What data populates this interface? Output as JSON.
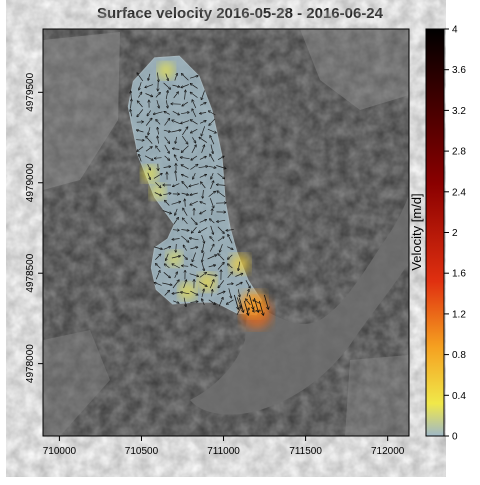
{
  "chart_data": {
    "type": "heatmap",
    "title": "Surface velocity 2016-05-28 - 2016-06-24",
    "xlabel": "",
    "ylabel": "",
    "xlim": [
      709900,
      712130
    ],
    "ylim": [
      4977600,
      4979850
    ],
    "x_ticks": [
      710000,
      710500,
      711000,
      711500,
      712000
    ],
    "y_ticks": [
      4978000,
      4978500,
      4979000,
      4979500
    ],
    "grid": false,
    "colorbar": {
      "label": "Velocity [m/d]",
      "range": [
        0,
        4
      ],
      "ticks": [
        0,
        0.4,
        0.8,
        1.2,
        1.6,
        2,
        2.4,
        2.8,
        3.2,
        3.6,
        4
      ],
      "tick_labels": [
        "0",
        "0.4",
        "0.8",
        "1.2",
        "1.6",
        "2",
        "2.4",
        "2.8",
        "3.2",
        "3.6",
        "4"
      ],
      "colors": [
        "#9fb8c8",
        "#f0e84a",
        "#f5a020",
        "#e03010",
        "#8a0000",
        "#000000"
      ]
    },
    "field_outline": [
      [
        710450,
        4979560
      ],
      [
        710580,
        4979690
      ],
      [
        710730,
        4979700
      ],
      [
        710850,
        4979590
      ],
      [
        710930,
        4979400
      ],
      [
        710990,
        4979150
      ],
      [
        711010,
        4978900
      ],
      [
        711040,
        4978750
      ],
      [
        711080,
        4978620
      ],
      [
        711150,
        4978460
      ],
      [
        711230,
        4978350
      ],
      [
        711200,
        4978270
      ],
      [
        711080,
        4978280
      ],
      [
        710950,
        4978340
      ],
      [
        710830,
        4978340
      ],
      [
        710690,
        4978330
      ],
      [
        710590,
        4978410
      ],
      [
        710560,
        4978530
      ],
      [
        710580,
        4978640
      ],
      [
        710660,
        4978690
      ],
      [
        710700,
        4978770
      ],
      [
        710580,
        4978920
      ],
      [
        710480,
        4979150
      ],
      [
        710420,
        4979420
      ]
    ],
    "velocity_hotspots": [
      {
        "x": 711200,
        "y": 4978280,
        "v": 1.2
      },
      {
        "x": 711180,
        "y": 4978330,
        "v": 0.9
      },
      {
        "x": 711100,
        "y": 4978550,
        "v": 0.5
      },
      {
        "x": 710900,
        "y": 4978450,
        "v": 0.4
      },
      {
        "x": 710780,
        "y": 4978400,
        "v": 0.35
      },
      {
        "x": 710550,
        "y": 4979050,
        "v": 0.3
      },
      {
        "x": 710650,
        "y": 4979620,
        "v": 0.3
      },
      {
        "x": 710600,
        "y": 4978950,
        "v": 0.25
      },
      {
        "x": 710700,
        "y": 4978580,
        "v": 0.25
      }
    ]
  }
}
